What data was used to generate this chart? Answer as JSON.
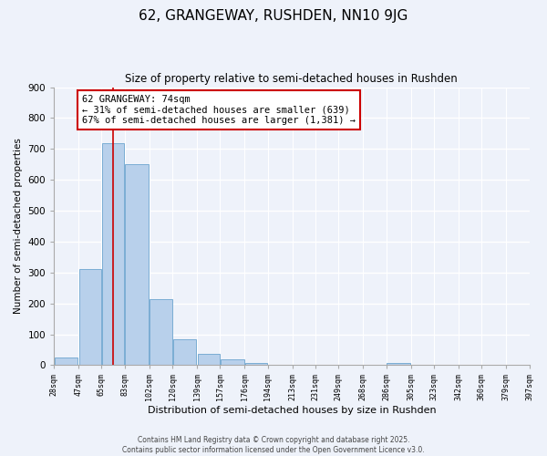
{
  "title": "62, GRANGEWAY, RUSHDEN, NN10 9JG",
  "subtitle": "Size of property relative to semi-detached houses in Rushden",
  "xlabel": "Distribution of semi-detached houses by size in Rushden",
  "ylabel": "Number of semi-detached properties",
  "bar_left_edges": [
    28,
    47,
    65,
    83,
    102,
    120,
    139,
    157,
    176,
    194,
    213,
    231,
    249,
    268,
    286,
    305,
    323,
    342,
    360,
    379
  ],
  "bar_widths": [
    19,
    18,
    18,
    19,
    18,
    19,
    18,
    19,
    18,
    19,
    18,
    18,
    19,
    18,
    19,
    18,
    19,
    18,
    19,
    18
  ],
  "bar_heights": [
    25,
    310,
    720,
    650,
    215,
    85,
    38,
    18,
    8,
    0,
    0,
    0,
    0,
    0,
    8,
    0,
    0,
    0,
    0,
    0
  ],
  "bar_color": "#b8d0eb",
  "bar_edge_color": "#7aadd4",
  "property_line_x": 74,
  "property_line_color": "#cc0000",
  "annotation_text": "62 GRANGEWAY: 74sqm\n← 31% of semi-detached houses are smaller (639)\n67% of semi-detached houses are larger (1,381) →",
  "annotation_box_color": "#ffffff",
  "annotation_box_edge": "#cc0000",
  "ylim": [
    0,
    900
  ],
  "yticks": [
    0,
    100,
    200,
    300,
    400,
    500,
    600,
    700,
    800,
    900
  ],
  "xlim_min": 28,
  "xlim_max": 397,
  "tick_positions": [
    28,
    47,
    65,
    83,
    102,
    120,
    139,
    157,
    176,
    194,
    213,
    231,
    249,
    268,
    286,
    305,
    323,
    342,
    360,
    379,
    397
  ],
  "tick_labels": [
    "28sqm",
    "47sqm",
    "65sqm",
    "83sqm",
    "102sqm",
    "120sqm",
    "139sqm",
    "157sqm",
    "176sqm",
    "194sqm",
    "213sqm",
    "231sqm",
    "249sqm",
    "268sqm",
    "286sqm",
    "305sqm",
    "323sqm",
    "342sqm",
    "360sqm",
    "379sqm",
    "397sqm"
  ],
  "footer1": "Contains HM Land Registry data © Crown copyright and database right 2025.",
  "footer2": "Contains public sector information licensed under the Open Government Licence v3.0.",
  "background_color": "#eef2fa",
  "grid_color": "#ffffff"
}
